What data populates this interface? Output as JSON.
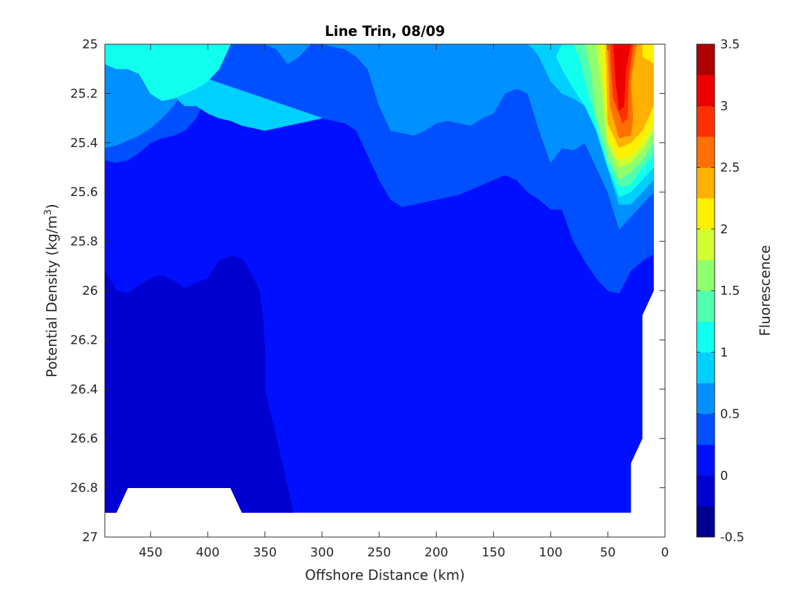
{
  "chart_data": {
    "type": "contour",
    "title": "Line Trin, 08/09",
    "xlabel": "Offshore Distance (km)",
    "ylabel_main": "Potential Density (kg/m",
    "ylabel_sup": "3",
    "ylabel_close": ")",
    "xlim": [
      490,
      0
    ],
    "ylim": [
      25,
      27
    ],
    "x_reversed": true,
    "y_reversed": true,
    "xticks": [
      450,
      400,
      350,
      300,
      250,
      200,
      150,
      100,
      50,
      0
    ],
    "xtick_labels": [
      "450",
      "400",
      "350",
      "300",
      "250",
      "200",
      "150",
      "100",
      "50",
      "0"
    ],
    "yticks": [
      25,
      25.2,
      25.4,
      25.6,
      25.8,
      26,
      26.2,
      26.4,
      26.6,
      26.8,
      27
    ],
    "ytick_labels": [
      "25",
      "25.2",
      "25.4",
      "25.6",
      "25.8",
      "26",
      "26.2",
      "26.4",
      "26.6",
      "26.8",
      "27"
    ],
    "colorbar": {
      "label": "Fluorescence",
      "range": [
        -0.5,
        3.5
      ],
      "level_step": 0.25,
      "ticks": [
        -0.5,
        0,
        0.5,
        1,
        1.5,
        2,
        2.5,
        3,
        3.5
      ],
      "tick_labels": [
        "-0.5",
        "0",
        "0.5",
        "1",
        "1.5",
        "2",
        "2.5",
        "3",
        "3.5"
      ],
      "colors": [
        "#000090",
        "#0000d0",
        "#0010ff",
        "#0050ff",
        "#0090ff",
        "#00d0ff",
        "#10ffef",
        "#50ffaf",
        "#90ff6f",
        "#d0ff2f",
        "#ffef00",
        "#ffb000",
        "#ff7000",
        "#ff3000",
        "#ef0000",
        "#af0000"
      ]
    },
    "regions": [
      {
        "level": 0.125,
        "points": [
          [
            490,
            25
          ],
          [
            10,
            25
          ],
          [
            10,
            26
          ],
          [
            20,
            26.1
          ],
          [
            20,
            26.6
          ],
          [
            30,
            26.7
          ],
          [
            30,
            26.9
          ],
          [
            370,
            26.9
          ],
          [
            380,
            26.8
          ],
          [
            470,
            26.8
          ],
          [
            480,
            26.9
          ],
          [
            490,
            26.9
          ]
        ]
      },
      {
        "level": -0.125,
        "points": [
          [
            490,
            25.92
          ],
          [
            480,
            26
          ],
          [
            470,
            26.01
          ],
          [
            460,
            25.98
          ],
          [
            450,
            25.95
          ],
          [
            440,
            25.94
          ],
          [
            430,
            25.96
          ],
          [
            420,
            25.99
          ],
          [
            410,
            25.97
          ],
          [
            400,
            25.95
          ],
          [
            390,
            25.88
          ],
          [
            380,
            25.86
          ],
          [
            370,
            25.87
          ],
          [
            360,
            25.95
          ],
          [
            355,
            26.0
          ],
          [
            352,
            26.1
          ],
          [
            350,
            26.25
          ],
          [
            350,
            26.4
          ],
          [
            345,
            26.5
          ],
          [
            340,
            26.6
          ],
          [
            335,
            26.7
          ],
          [
            330,
            26.8
          ],
          [
            325,
            26.9
          ],
          [
            370,
            26.9
          ],
          [
            380,
            26.8
          ],
          [
            470,
            26.8
          ],
          [
            480,
            26.9
          ],
          [
            490,
            26.9
          ]
        ]
      },
      {
        "level": 0.375,
        "points": [
          [
            490,
            25
          ],
          [
            10,
            25
          ],
          [
            10,
            25.85
          ],
          [
            20,
            25.88
          ],
          [
            30,
            25.92
          ],
          [
            40,
            26.01
          ],
          [
            50,
            26.0
          ],
          [
            60,
            25.95
          ],
          [
            70,
            25.88
          ],
          [
            80,
            25.8
          ],
          [
            90,
            25.67
          ],
          [
            100,
            25.67
          ],
          [
            110,
            25.63
          ],
          [
            120,
            25.6
          ],
          [
            130,
            25.55
          ],
          [
            140,
            25.53
          ],
          [
            150,
            25.55
          ],
          [
            160,
            25.57
          ],
          [
            170,
            25.59
          ],
          [
            180,
            25.61
          ],
          [
            190,
            25.62
          ],
          [
            200,
            25.63
          ],
          [
            210,
            25.64
          ],
          [
            220,
            25.65
          ],
          [
            230,
            25.66
          ],
          [
            240,
            25.63
          ],
          [
            250,
            25.55
          ],
          [
            260,
            25.45
          ],
          [
            270,
            25.35
          ],
          [
            280,
            25.32
          ],
          [
            300,
            25.3
          ],
          [
            320,
            25.28
          ],
          [
            340,
            25.27
          ],
          [
            360,
            25.25
          ],
          [
            380,
            25.18
          ],
          [
            390,
            25.17
          ],
          [
            400,
            25.2
          ],
          [
            410,
            25.3
          ],
          [
            420,
            25.35
          ],
          [
            430,
            25.37
          ],
          [
            440,
            25.38
          ],
          [
            450,
            25.4
          ],
          [
            460,
            25.44
          ],
          [
            470,
            25.47
          ],
          [
            480,
            25.48
          ],
          [
            490,
            25.47
          ]
        ]
      },
      {
        "level": 0.625,
        "points": [
          [
            490,
            25
          ],
          [
            300,
            25
          ],
          [
            310,
            25.0
          ],
          [
            320,
            25.05
          ],
          [
            330,
            25.08
          ],
          [
            340,
            25.02
          ],
          [
            350,
            25.0
          ],
          [
            10,
            25
          ],
          [
            10,
            25.6
          ],
          [
            20,
            25.65
          ],
          [
            30,
            25.7
          ],
          [
            40,
            25.75
          ],
          [
            50,
            25.6
          ],
          [
            60,
            25.5
          ],
          [
            70,
            25.4
          ],
          [
            80,
            25.43
          ],
          [
            90,
            25.42
          ],
          [
            100,
            25.48
          ],
          [
            110,
            25.35
          ],
          [
            120,
            25.2
          ],
          [
            130,
            25.18
          ],
          [
            140,
            25.2
          ],
          [
            150,
            25.28
          ],
          [
            160,
            25.3
          ],
          [
            170,
            25.33
          ],
          [
            180,
            25.32
          ],
          [
            190,
            25.31
          ],
          [
            200,
            25.32
          ],
          [
            210,
            25.35
          ],
          [
            220,
            25.37
          ],
          [
            230,
            25.36
          ],
          [
            240,
            25.35
          ],
          [
            250,
            25.25
          ],
          [
            260,
            25.1
          ],
          [
            270,
            25.05
          ],
          [
            280,
            25.02
          ],
          [
            300,
            25.0
          ]
        ]
      },
      {
        "level": 0.625,
        "points": [
          [
            490,
            25
          ],
          [
            370,
            25
          ],
          [
            380,
            25.0
          ],
          [
            390,
            25.0
          ],
          [
            400,
            25.05
          ],
          [
            410,
            25.12
          ],
          [
            420,
            25.18
          ],
          [
            430,
            25.25
          ],
          [
            440,
            25.3
          ],
          [
            450,
            25.34
          ],
          [
            460,
            25.37
          ],
          [
            470,
            25.39
          ],
          [
            480,
            25.41
          ],
          [
            490,
            25.42
          ]
        ]
      },
      {
        "level": 0.875,
        "points": [
          [
            490,
            25
          ],
          [
            450,
            25
          ],
          [
            445,
            25.05
          ],
          [
            440,
            25.1
          ],
          [
            435,
            25.15
          ],
          [
            430,
            25.2
          ],
          [
            425,
            25.23
          ],
          [
            420,
            25.25
          ],
          [
            410,
            25.25
          ],
          [
            400,
            25.28
          ],
          [
            390,
            25.3
          ],
          [
            380,
            25.31
          ],
          [
            370,
            25.33
          ],
          [
            360,
            25.34
          ],
          [
            350,
            25.35
          ],
          [
            340,
            25.34
          ],
          [
            330,
            25.33
          ],
          [
            320,
            25.32
          ],
          [
            310,
            25.31
          ],
          [
            300,
            25.3
          ]
        ]
      },
      {
        "level": 0.875,
        "points": [
          [
            120,
            25
          ],
          [
            10,
            25
          ],
          [
            10,
            25.55
          ],
          [
            20,
            25.6
          ],
          [
            30,
            25.65
          ],
          [
            40,
            25.65
          ],
          [
            50,
            25.5
          ],
          [
            60,
            25.35
          ],
          [
            70,
            25.25
          ],
          [
            80,
            25.22
          ],
          [
            90,
            25.2
          ],
          [
            100,
            25.15
          ],
          [
            110,
            25.05
          ],
          [
            115,
            25.02
          ]
        ]
      },
      {
        "level": 1.125,
        "points": [
          [
            490,
            25.08
          ],
          [
            480,
            25.1
          ],
          [
            470,
            25.1
          ],
          [
            460,
            25.12
          ],
          [
            450,
            25.2
          ],
          [
            440,
            25.23
          ],
          [
            430,
            25.22
          ],
          [
            420,
            25.2
          ],
          [
            410,
            25.18
          ],
          [
            400,
            25.15
          ],
          [
            390,
            25.1
          ],
          [
            385,
            25.05
          ],
          [
            380,
            25.0
          ],
          [
            490,
            25.0
          ]
        ]
      },
      {
        "level": 1.125,
        "points": [
          [
            90,
            25
          ],
          [
            10,
            25
          ],
          [
            10,
            25.5
          ],
          [
            20,
            25.55
          ],
          [
            30,
            25.6
          ],
          [
            40,
            25.62
          ],
          [
            50,
            25.5
          ],
          [
            60,
            25.35
          ],
          [
            70,
            25.25
          ],
          [
            80,
            25.18
          ],
          [
            90,
            25.1
          ],
          [
            95,
            25.05
          ]
        ]
      },
      {
        "level": 1.375,
        "points": [
          [
            80,
            25
          ],
          [
            10,
            25
          ],
          [
            10,
            25.45
          ],
          [
            20,
            25.5
          ],
          [
            30,
            25.57
          ],
          [
            40,
            25.58
          ],
          [
            50,
            25.48
          ],
          [
            60,
            25.32
          ],
          [
            70,
            25.15
          ],
          [
            75,
            25.05
          ]
        ]
      },
      {
        "level": 1.625,
        "points": [
          [
            70,
            25
          ],
          [
            10,
            25
          ],
          [
            10,
            25.4
          ],
          [
            20,
            25.47
          ],
          [
            30,
            25.52
          ],
          [
            40,
            25.55
          ],
          [
            50,
            25.45
          ],
          [
            60,
            25.28
          ],
          [
            65,
            25.1
          ]
        ]
      },
      {
        "level": 1.875,
        "points": [
          [
            60,
            25
          ],
          [
            10,
            25
          ],
          [
            10,
            25.35
          ],
          [
            20,
            25.43
          ],
          [
            30,
            25.48
          ],
          [
            40,
            25.5
          ],
          [
            50,
            25.4
          ],
          [
            55,
            25.2
          ]
        ]
      },
      {
        "level": 2.125,
        "points": [
          [
            55,
            25
          ],
          [
            10,
            25
          ],
          [
            10,
            25.32
          ],
          [
            20,
            25.4
          ],
          [
            30,
            25.45
          ],
          [
            40,
            25.47
          ],
          [
            50,
            25.38
          ],
          [
            53,
            25.15
          ]
        ]
      },
      {
        "level": 2.375,
        "points": [
          [
            52,
            25
          ],
          [
            20,
            25
          ],
          [
            20,
            25.05
          ],
          [
            10,
            25.08
          ],
          [
            10,
            25.25
          ],
          [
            20,
            25.35
          ],
          [
            30,
            25.4
          ],
          [
            40,
            25.42
          ],
          [
            50,
            25.32
          ],
          [
            51,
            25.1
          ]
        ]
      },
      {
        "level": 2.625,
        "points": [
          [
            50,
            25
          ],
          [
            25,
            25
          ],
          [
            30,
            25.15
          ],
          [
            28,
            25.3
          ],
          [
            30,
            25.37
          ],
          [
            40,
            25.38
          ],
          [
            48,
            25.25
          ],
          [
            49,
            25.1
          ]
        ]
      },
      {
        "level": 2.875,
        "points": [
          [
            48,
            25
          ],
          [
            28,
            25
          ],
          [
            32,
            25.15
          ],
          [
            33,
            25.3
          ],
          [
            37,
            25.32
          ],
          [
            45,
            25.22
          ],
          [
            47,
            25.1
          ]
        ]
      },
      {
        "level": 3.125,
        "points": [
          [
            45,
            25
          ],
          [
            30,
            25
          ],
          [
            34,
            25.1
          ],
          [
            36,
            25.25
          ],
          [
            40,
            25.27
          ],
          [
            43,
            25.15
          ]
        ]
      }
    ]
  }
}
